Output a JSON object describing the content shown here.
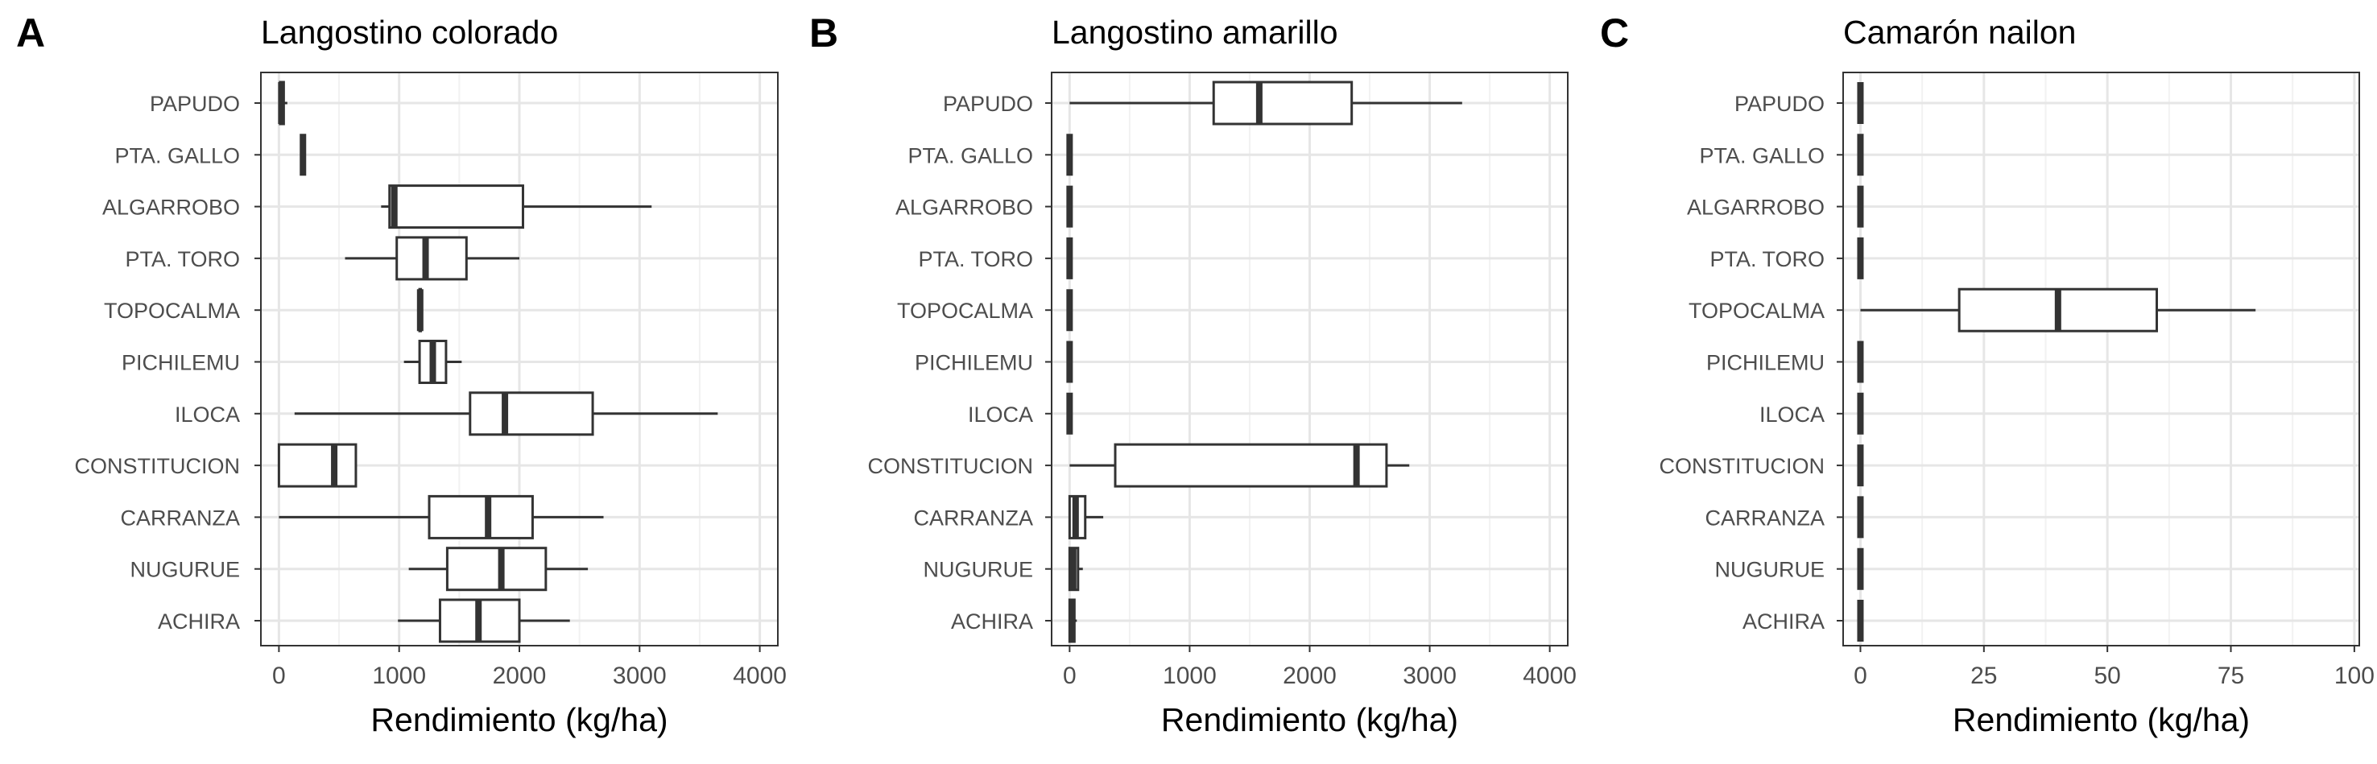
{
  "chart_data": [
    {
      "type": "boxplot",
      "panel": "A",
      "title": "Langostino colorado",
      "xlabel": "Rendimiento (kg/ha)",
      "ylabel": "",
      "xlim": [
        -150,
        4150
      ],
      "xticks": [
        0,
        1000,
        2000,
        3000,
        4000
      ],
      "xtick_labels": [
        "0",
        "1000",
        "2000",
        "3000",
        "4000"
      ],
      "grid": true,
      "categories": [
        "PAPUDO",
        "PTA. GALLO",
        "ALGARROBO",
        "PTA. TORO",
        "TOPOCALMA",
        "PICHILEMU",
        "ILOCA",
        "CONSTITUCION",
        "CARRANZA",
        "NUGURUE",
        "ACHIRA"
      ],
      "boxes": [
        {
          "category": "PAPUDO",
          "min": 0,
          "q1": 10,
          "median": 20,
          "q3": 40,
          "max": 70
        },
        {
          "category": "PTA. GALLO",
          "min": 195,
          "q1": 200,
          "median": 200,
          "q3": 205,
          "max": 210
        },
        {
          "category": "ALGARROBO",
          "min": 850,
          "q1": 920,
          "median": 960,
          "q3": 2030,
          "max": 3100
        },
        {
          "category": "PTA. TORO",
          "min": 550,
          "q1": 980,
          "median": 1220,
          "q3": 1560,
          "max": 2000
        },
        {
          "category": "TOPOCALMA",
          "min": 1160,
          "q1": 1170,
          "median": 1175,
          "q3": 1180,
          "max": 1190
        },
        {
          "category": "PICHILEMU",
          "min": 1040,
          "q1": 1170,
          "median": 1280,
          "q3": 1390,
          "max": 1520
        },
        {
          "category": "ILOCA",
          "min": 130,
          "q1": 1590,
          "median": 1880,
          "q3": 2610,
          "max": 3650
        },
        {
          "category": "CONSTITUCION",
          "min": 0,
          "q1": 0,
          "median": 460,
          "q3": 640,
          "max": 640
        },
        {
          "category": "CARRANZA",
          "min": 0,
          "q1": 1250,
          "median": 1740,
          "q3": 2110,
          "max": 2700
        },
        {
          "category": "NUGURUE",
          "min": 1080,
          "q1": 1400,
          "median": 1850,
          "q3": 2220,
          "max": 2570
        },
        {
          "category": "ACHIRA",
          "min": 990,
          "q1": 1340,
          "median": 1660,
          "q3": 2000,
          "max": 2420
        }
      ]
    },
    {
      "type": "boxplot",
      "panel": "B",
      "title": "Langostino amarillo",
      "xlabel": "Rendimiento (kg/ha)",
      "ylabel": "",
      "xlim": [
        -150,
        4150
      ],
      "xticks": [
        0,
        1000,
        2000,
        3000,
        4000
      ],
      "xtick_labels": [
        "0",
        "1000",
        "2000",
        "3000",
        "4000"
      ],
      "grid": true,
      "categories": [
        "PAPUDO",
        "PTA. GALLO",
        "ALGARROBO",
        "PTA. TORO",
        "TOPOCALMA",
        "PICHILEMU",
        "ILOCA",
        "CONSTITUCION",
        "CARRANZA",
        "NUGURUE",
        "ACHIRA"
      ],
      "boxes": [
        {
          "category": "PAPUDO",
          "min": 0,
          "q1": 1200,
          "median": 1580,
          "q3": 2350,
          "max": 3270
        },
        {
          "category": "PTA. GALLO",
          "min": 0,
          "q1": 0,
          "median": 0,
          "q3": 0,
          "max": 0
        },
        {
          "category": "ALGARROBO",
          "min": 0,
          "q1": 0,
          "median": 0,
          "q3": 0,
          "max": 0
        },
        {
          "category": "PTA. TORO",
          "min": 0,
          "q1": 0,
          "median": 0,
          "q3": 0,
          "max": 0
        },
        {
          "category": "TOPOCALMA",
          "min": 0,
          "q1": 0,
          "median": 0,
          "q3": 0,
          "max": 0
        },
        {
          "category": "PICHILEMU",
          "min": 0,
          "q1": 0,
          "median": 0,
          "q3": 0,
          "max": 0
        },
        {
          "category": "ILOCA",
          "min": 0,
          "q1": 0,
          "median": 0,
          "q3": 0,
          "max": 0
        },
        {
          "category": "CONSTITUCION",
          "min": 0,
          "q1": 380,
          "median": 2390,
          "q3": 2640,
          "max": 2830
        },
        {
          "category": "CARRANZA",
          "min": 0,
          "q1": 0,
          "median": 50,
          "q3": 130,
          "max": 280
        },
        {
          "category": "NUGURUE",
          "min": 0,
          "q1": 0,
          "median": 30,
          "q3": 70,
          "max": 110
        },
        {
          "category": "ACHIRA",
          "min": 0,
          "q1": 0,
          "median": 20,
          "q3": 40,
          "max": 60
        }
      ]
    },
    {
      "type": "boxplot",
      "panel": "C",
      "title": "Camarón nailon",
      "xlabel": "Rendimiento (kg/ha)",
      "ylabel": "",
      "xlim": [
        -3.5,
        101
      ],
      "xticks": [
        0,
        25,
        50,
        75,
        100
      ],
      "xtick_labels": [
        "0",
        "25",
        "50",
        "75",
        "100"
      ],
      "grid": true,
      "categories": [
        "PAPUDO",
        "PTA. GALLO",
        "ALGARROBO",
        "PTA. TORO",
        "TOPOCALMA",
        "PICHILEMU",
        "ILOCA",
        "CONSTITUCION",
        "CARRANZA",
        "NUGURUE",
        "ACHIRA"
      ],
      "boxes": [
        {
          "category": "PAPUDO",
          "min": 0,
          "q1": 0,
          "median": 0,
          "q3": 0,
          "max": 0
        },
        {
          "category": "PTA. GALLO",
          "min": 0,
          "q1": 0,
          "median": 0,
          "q3": 0,
          "max": 0
        },
        {
          "category": "ALGARROBO",
          "min": 0,
          "q1": 0,
          "median": 0,
          "q3": 0,
          "max": 0
        },
        {
          "category": "PTA. TORO",
          "min": 0,
          "q1": 0,
          "median": 0,
          "q3": 0,
          "max": 0
        },
        {
          "category": "TOPOCALMA",
          "min": 0,
          "q1": 20,
          "median": 40,
          "q3": 60,
          "max": 80
        },
        {
          "category": "PICHILEMU",
          "min": 0,
          "q1": 0,
          "median": 0,
          "q3": 0,
          "max": 0
        },
        {
          "category": "ILOCA",
          "min": 0,
          "q1": 0,
          "median": 0,
          "q3": 0,
          "max": 0
        },
        {
          "category": "CONSTITUCION",
          "min": 0,
          "q1": 0,
          "median": 0,
          "q3": 0,
          "max": 0
        },
        {
          "category": "CARRANZA",
          "min": 0,
          "q1": 0,
          "median": 0,
          "q3": 0,
          "max": 0
        },
        {
          "category": "NUGURUE",
          "min": 0,
          "q1": 0,
          "median": 0,
          "q3": 0,
          "max": 0
        },
        {
          "category": "ACHIRA",
          "min": 0,
          "q1": 0,
          "median": 0,
          "q3": 0,
          "max": 0
        }
      ]
    }
  ]
}
